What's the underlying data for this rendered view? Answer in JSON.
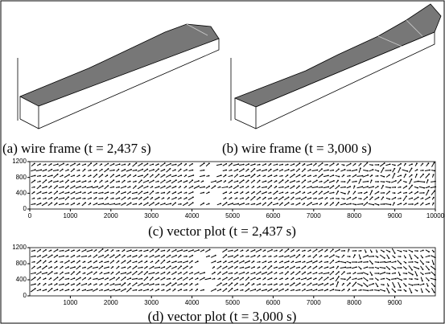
{
  "panels": [
    {
      "caption": "(a) wire frame (t = 2,437 s)"
    },
    {
      "caption": "(b) wire frame (t = 3,000 s)"
    },
    {
      "caption": "(c) vector plot (t = 2,437 s)",
      "xlim": [
        0,
        10000
      ],
      "ylim": [
        0,
        1200
      ],
      "xticks": [
        0,
        1000,
        2000,
        3000,
        4000,
        5000,
        6000,
        7000,
        8000,
        9000,
        10000
      ],
      "yticks": [
        0,
        400,
        800,
        1200
      ]
    },
    {
      "caption": "(d)  vector plot (t = 3,000 s)",
      "xlim": [
        0,
        10000
      ],
      "ylim": [
        0,
        1200
      ],
      "xticks": [
        1000,
        2000,
        3000,
        4000,
        5000,
        6000,
        7000,
        8000,
        9000
      ],
      "yticks": [
        0,
        400,
        800,
        1200
      ]
    }
  ]
}
